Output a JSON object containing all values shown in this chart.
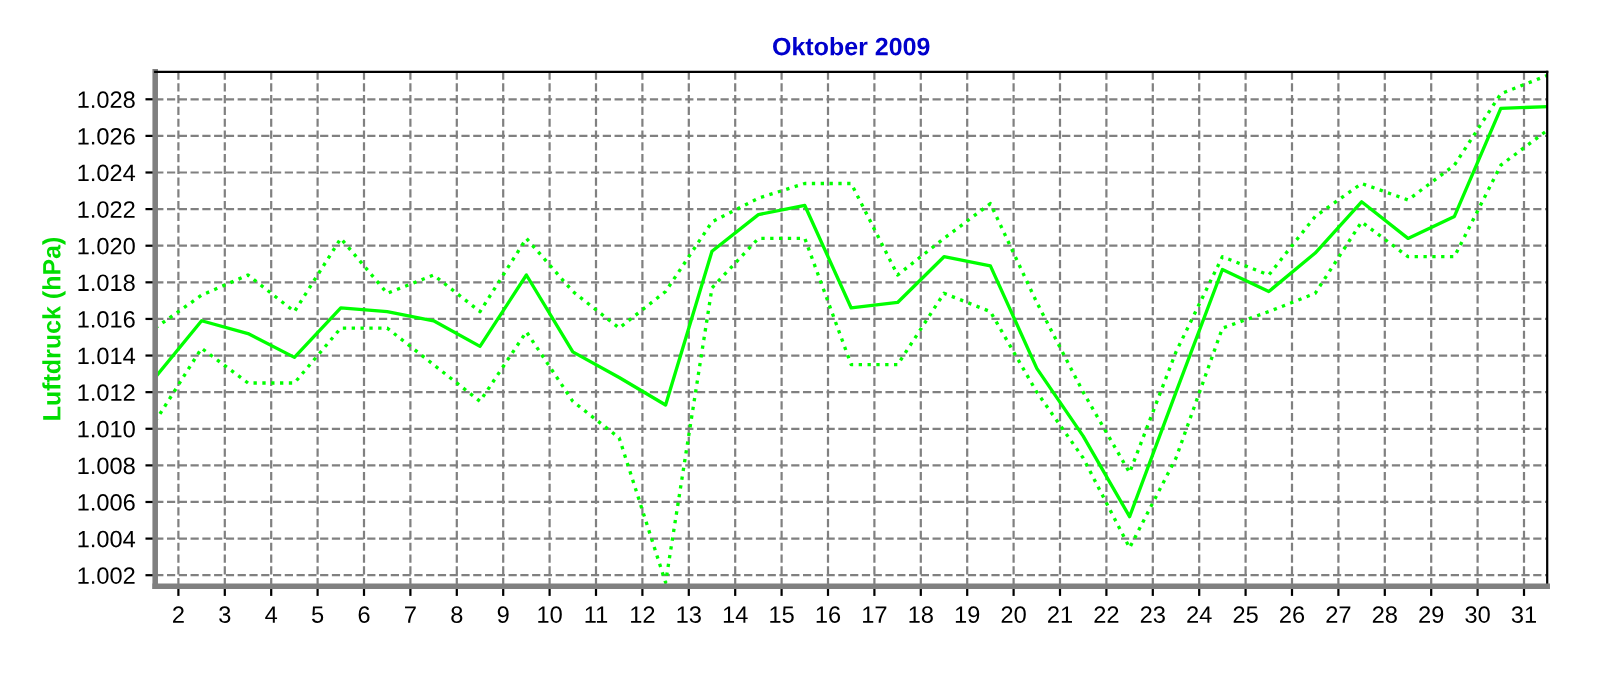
{
  "chart_data": {
    "type": "line",
    "title": "Oktober 2009",
    "ylabel": "Luftdruck (hPa)",
    "x": [
      1.5,
      2.5,
      3.5,
      4.5,
      5.5,
      6.5,
      7.5,
      8.5,
      9.5,
      10.5,
      11.5,
      12.5,
      13.5,
      14.5,
      15.5,
      16.5,
      17.5,
      18.5,
      19.5,
      20.5,
      21.5,
      22.5,
      23.5,
      24.5,
      25.5,
      26.5,
      27.5,
      28.5,
      29.5,
      30.5,
      31.5
    ],
    "series": [
      {
        "color": "#00ff00",
        "line_style": "dotted",
        "values": [
          1.0155,
          1.0173,
          1.0184,
          1.0164,
          1.0204,
          1.0174,
          1.0184,
          1.0164,
          1.0204,
          1.0175,
          1.0155,
          1.0175,
          1.0213,
          1.0226,
          1.0234,
          1.0234,
          1.0184,
          1.0204,
          1.0223,
          1.0169,
          1.012,
          1.0076,
          1.0142,
          1.0194,
          1.0184,
          1.0216,
          1.0234,
          1.0225,
          1.0244,
          1.0283,
          1.0293
        ]
      },
      {
        "color": "#00ff00",
        "line_style": "solid",
        "values": [
          1.0128,
          1.0159,
          1.0152,
          1.0139,
          1.0166,
          1.0164,
          1.0159,
          1.0145,
          1.0184,
          1.0142,
          1.0128,
          1.0113,
          1.0197,
          1.0217,
          1.0222,
          1.0166,
          1.0169,
          1.0194,
          1.0189,
          1.0133,
          1.0096,
          1.0052,
          1.012,
          1.0187,
          1.0175,
          1.0196,
          1.0224,
          1.0204,
          1.0216,
          1.0275,
          1.0276
        ]
      },
      {
        "color": "#00ff00",
        "line_style": "dotted",
        "values": [
          1.0104,
          1.0144,
          1.0125,
          1.0125,
          1.0155,
          1.0155,
          1.0135,
          1.0115,
          1.0153,
          1.0115,
          1.0095,
          1.0016,
          1.0177,
          1.0204,
          1.0204,
          1.0135,
          1.0135,
          1.0174,
          1.0164,
          1.012,
          1.0084,
          1.0035,
          1.0084,
          1.0155,
          1.0164,
          1.0174,
          1.0213,
          1.0194,
          1.0194,
          1.0244,
          1.0263
        ]
      }
    ],
    "xlim": [
      1.5,
      31.5
    ],
    "xticks": [
      2,
      3,
      4,
      5,
      6,
      7,
      8,
      9,
      10,
      11,
      12,
      13,
      14,
      15,
      16,
      17,
      18,
      19,
      20,
      21,
      22,
      23,
      24,
      25,
      26,
      27,
      28,
      29,
      30,
      31
    ],
    "ylim": [
      1.0014,
      1.0295
    ],
    "yticks": [
      1.002,
      1.004,
      1.006,
      1.008,
      {
        "value": 1.01,
        "label": "1.010"
      },
      1.012,
      1.014,
      1.016,
      1.018,
      {
        "value": 1.02,
        "label": "1.020"
      },
      1.022,
      1.024,
      1.026,
      1.028
    ],
    "grid": true,
    "marker": "none"
  }
}
